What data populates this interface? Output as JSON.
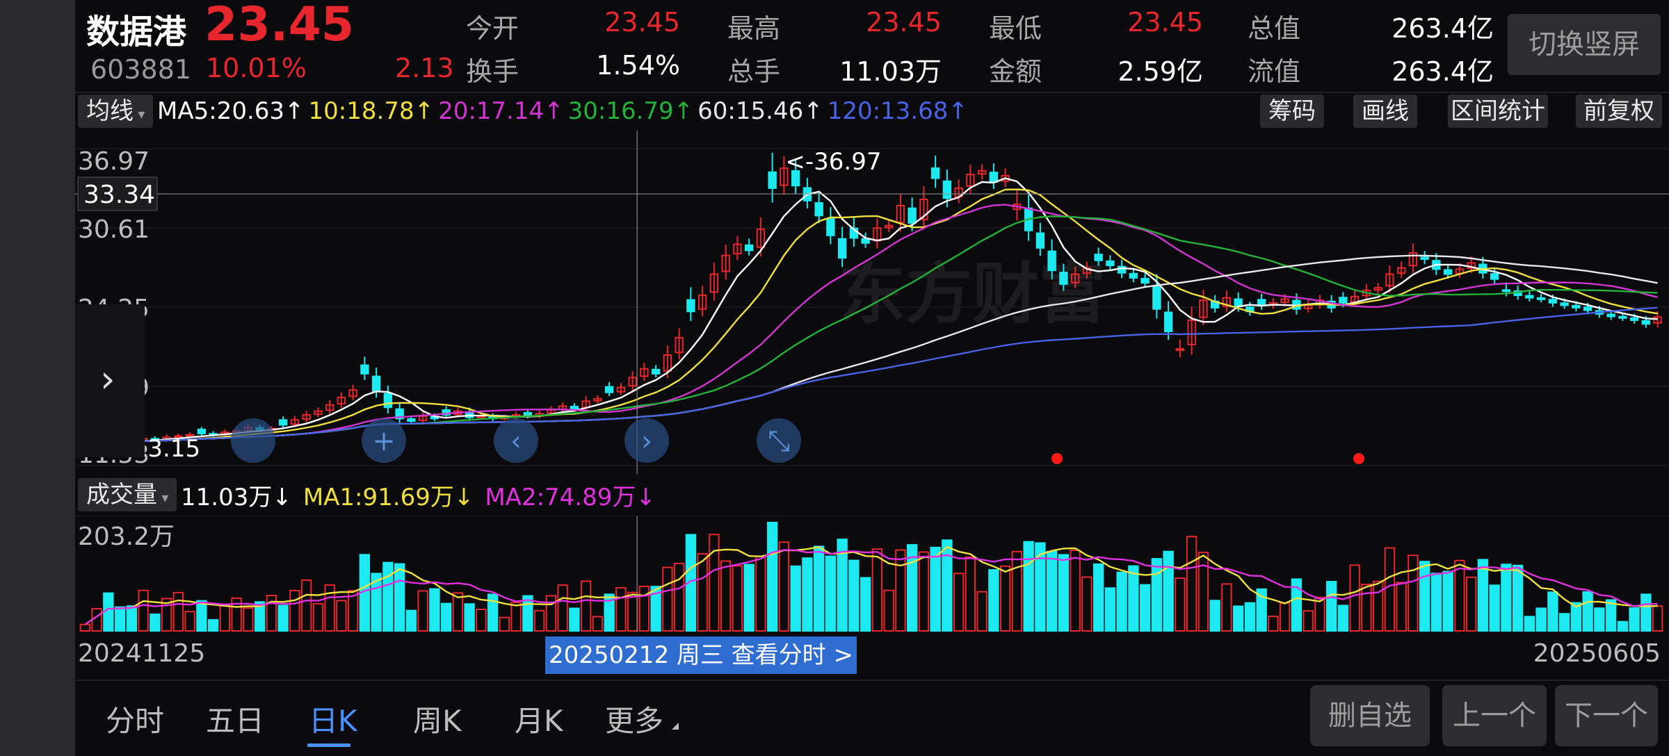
{
  "header": {
    "name": "数据港",
    "price": "23.45",
    "code": "603881",
    "pct": "10.01%",
    "change": "2.13",
    "stats": [
      {
        "label": "今开",
        "value": "23.45",
        "red": true
      },
      {
        "label": "最高",
        "value": "23.45",
        "red": true
      },
      {
        "label": "最低",
        "value": "23.45",
        "red": true
      },
      {
        "label": "总值",
        "value": "263.4亿",
        "red": false
      },
      {
        "label": "换手",
        "value": "1.54%",
        "red": false
      },
      {
        "label": "总手",
        "value": "11.03万",
        "red": false
      },
      {
        "label": "金额",
        "value": "2.59亿",
        "red": false
      },
      {
        "label": "流值",
        "value": "263.4亿",
        "red": false
      }
    ],
    "switch_label": "切换竖屏"
  },
  "ma_row": {
    "selector": "均线",
    "items": [
      {
        "text": "MA5:20.63↑",
        "color": "#ffffff"
      },
      {
        "text": "10:18.78↑",
        "color": "#f0e040"
      },
      {
        "text": "20:17.14↑",
        "color": "#d235d2"
      },
      {
        "text": "30:16.79↑",
        "color": "#24b23a"
      },
      {
        "text": "60:15.46↑",
        "color": "#e8e8e8"
      },
      {
        "text": "120:13.68↑",
        "color": "#4a63e6"
      }
    ],
    "buttons": [
      "筹码",
      "画线",
      "区间统计",
      "前复权"
    ]
  },
  "price_chart": {
    "ticks": [
      "36.97",
      "30.61",
      "24.25",
      "17.89",
      "11.53"
    ],
    "crosshair_price": "33.34",
    "max_label": "<-36.97",
    "min_label": "<-13.15",
    "watermark": "东方财富"
  },
  "volume_row": {
    "selector": "成交量",
    "items": [
      {
        "text": "11.03万↓",
        "color": "#ffffff"
      },
      {
        "text": "MA1:91.69万↓",
        "color": "#f0e040"
      },
      {
        "text": "MA2:74.89万↓",
        "color": "#e030e0"
      }
    ],
    "max_tick": "203.2万"
  },
  "dates": {
    "start": "20241125",
    "end": "20250605",
    "cursor_label": "20250212 周三 查看分时 >"
  },
  "tabs": [
    "分时",
    "五日",
    "日K",
    "周K",
    "月K",
    "更多"
  ],
  "active_tab": 2,
  "bottom_buttons": [
    "删自选",
    "上一个",
    "下一个"
  ],
  "colors": {
    "up": "#e8262d",
    "down": "#1de9f0",
    "ma5": "#ffffff",
    "ma10": "#f0e040",
    "ma20": "#d235d2",
    "ma30": "#24b23a",
    "ma60": "#e8e8e8",
    "ma120": "#4a63e6",
    "vol_ma1": "#f0e040",
    "vol_ma2": "#e030e0",
    "accent": "#4a90ff"
  },
  "chart_data": [
    {
      "type": "candlestick",
      "title": "",
      "ylim": [
        11.53,
        36.97
      ],
      "x_start": "20241125",
      "x_end": "20250605",
      "close": [
        13.4,
        13.5,
        13.3,
        13.6,
        13.5,
        13.7,
        13.6,
        13.8,
        13.9,
        14.0,
        14.1,
        14.0,
        14.2,
        14.3,
        14.6,
        14.4,
        14.5,
        14.8,
        15.2,
        15.6,
        15.9,
        16.4,
        17.0,
        17.6,
        18.9,
        17.5,
        16.2,
        15.3,
        15.1,
        15.5,
        15.3,
        15.6,
        15.9,
        15.4,
        15.5,
        15.3,
        15.4,
        15.6,
        15.5,
        15.7,
        16.0,
        16.3,
        16.1,
        16.7,
        16.9,
        17.4,
        17.8,
        18.6,
        19.3,
        18.9,
        20.4,
        21.8,
        23.9,
        25.2,
        26.9,
        28.4,
        29.3,
        28.8,
        30.5,
        33.8,
        35.4,
        34.0,
        32.8,
        31.6,
        30.0,
        28.2,
        29.8,
        29.4,
        30.6,
        30.8,
        32.4,
        31.0,
        32.9,
        34.6,
        33.0,
        33.8,
        34.9,
        35.2,
        34.3,
        34.8,
        32.5,
        30.4,
        29.0,
        27.2,
        26.1,
        26.9,
        27.4,
        28.0,
        27.6,
        27.0,
        26.6,
        26.2,
        24.1,
        22.3,
        20.9,
        23.2,
        24.8,
        24.2,
        25.0,
        24.3,
        23.9,
        24.4,
        24.6,
        24.9,
        24.1,
        24.4,
        24.8,
        24.2,
        24.6,
        25.1,
        25.6,
        25.8,
        26.9,
        27.4,
        28.6,
        28.1,
        27.3,
        26.9,
        27.3,
        27.8,
        27.0,
        26.5,
        25.6,
        25.2,
        25.0,
        24.9,
        24.6,
        24.4,
        24.2,
        24.0,
        23.7,
        23.5,
        23.4,
        23.2,
        22.9,
        23.45
      ],
      "volume_max": "203.2万"
    }
  ]
}
